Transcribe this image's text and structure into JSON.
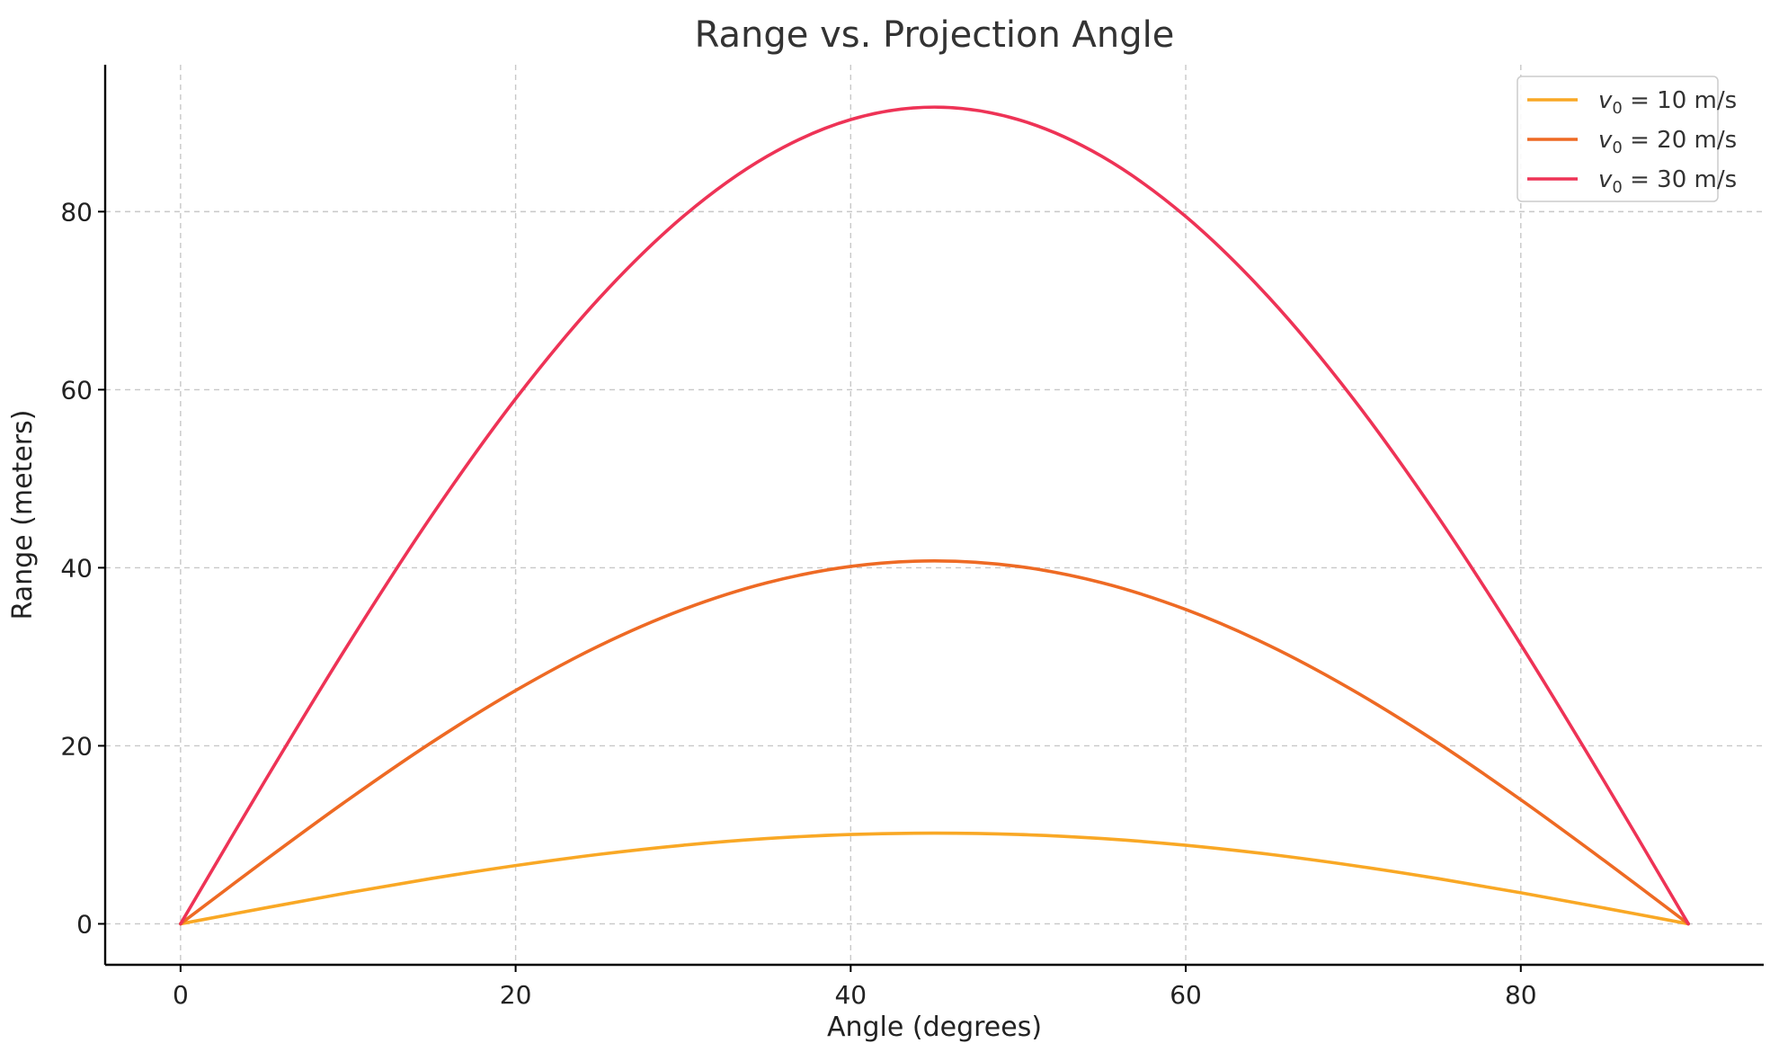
{
  "chart_data": {
    "type": "line",
    "title": "Range vs. Projection Angle",
    "xlabel": "Angle (degrees)",
    "ylabel": "Range (meters)",
    "xlim": [
      -4.5,
      94.5
    ],
    "ylim": [
      -4.6,
      96.5
    ],
    "xticks": [
      0,
      20,
      40,
      60,
      80
    ],
    "yticks": [
      0,
      20,
      40,
      60,
      80
    ],
    "grid": true,
    "legend_position": "top-right",
    "x": [
      0,
      5,
      10,
      15,
      20,
      25,
      30,
      35,
      40,
      45,
      50,
      55,
      60,
      65,
      70,
      75,
      80,
      85,
      90
    ],
    "series": [
      {
        "name": "v₀ = 10 m/s",
        "name_var": "v",
        "name_sub": "0",
        "name_rest": " = 10 m/s",
        "color": "#f9a825",
        "values": [
          0,
          1.77,
          3.49,
          5.1,
          6.55,
          7.81,
          8.83,
          9.58,
          10.04,
          10.19,
          10.04,
          9.58,
          8.83,
          7.81,
          6.55,
          5.1,
          3.49,
          1.77,
          0
        ]
      },
      {
        "name": "v₀ = 20 m/s",
        "name_var": "v",
        "name_sub": "0",
        "name_rest": " = 20 m/s",
        "color": "#ee6a24",
        "values": [
          0,
          7.08,
          13.94,
          20.39,
          26.21,
          31.24,
          35.31,
          38.31,
          40.15,
          40.77,
          40.15,
          38.31,
          35.31,
          31.24,
          26.21,
          20.39,
          13.94,
          7.08,
          0
        ]
      },
      {
        "name": "v₀ = 30 m/s",
        "name_var": "v",
        "name_sub": "0",
        "name_rest": " = 30 m/s",
        "color": "#ee3356",
        "values": [
          0,
          15.94,
          31.37,
          45.87,
          58.98,
          70.29,
          79.45,
          86.2,
          90.34,
          91.74,
          90.34,
          86.2,
          79.45,
          70.29,
          58.98,
          45.87,
          31.37,
          15.94,
          0
        ]
      }
    ]
  }
}
